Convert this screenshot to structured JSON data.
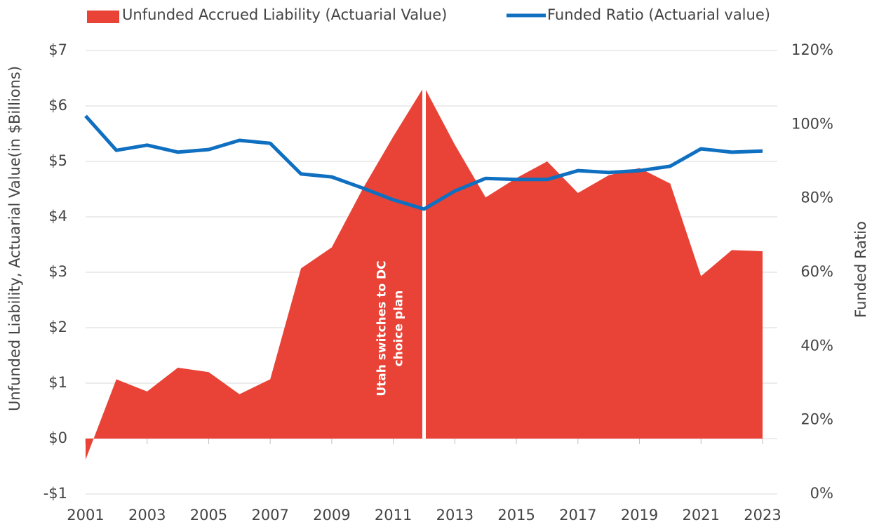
{
  "chart_data": {
    "type": "area",
    "ylabel": "Unfunded Liability, Actuarial Value(in $Billions)",
    "y2label": "Funded Ratio",
    "x": [
      2001,
      2002,
      2003,
      2004,
      2005,
      2006,
      2007,
      2008,
      2009,
      2010,
      2011,
      2012,
      2013,
      2014,
      2015,
      2016,
      2017,
      2018,
      2019,
      2020,
      2021,
      2022,
      2023
    ],
    "xlim": [
      2001,
      2023
    ],
    "xticks": [
      2001,
      2003,
      2005,
      2007,
      2009,
      2011,
      2013,
      2015,
      2017,
      2019,
      2021,
      2023
    ],
    "ylim": [
      -1,
      7
    ],
    "yticks": [
      {
        "value": -1,
        "label": "-$1"
      },
      {
        "value": 0,
        "label": "$0"
      },
      {
        "value": 1,
        "label": "$1"
      },
      {
        "value": 2,
        "label": "$2"
      },
      {
        "value": 3,
        "label": "$3"
      },
      {
        "value": 4,
        "label": "$4"
      },
      {
        "value": 5,
        "label": "$5"
      },
      {
        "value": 6,
        "label": "$6"
      },
      {
        "value": 7,
        "label": "$7"
      }
    ],
    "y2lim": [
      0,
      120
    ],
    "y2ticks": [
      {
        "value": 0,
        "label": "0%"
      },
      {
        "value": 20,
        "label": "20%"
      },
      {
        "value": 40,
        "label": "40%"
      },
      {
        "value": 60,
        "label": "60%"
      },
      {
        "value": 80,
        "label": "80%"
      },
      {
        "value": 100,
        "label": "100%"
      },
      {
        "value": 120,
        "label": "120%"
      }
    ],
    "grid": true,
    "legend": "top",
    "series": [
      {
        "name": "Unfunded Accrued Liability (Actuarial Value)",
        "type": "area",
        "color": "#e84336",
        "values": [
          -0.38,
          1.07,
          0.85,
          1.28,
          1.2,
          0.8,
          1.07,
          3.07,
          3.45,
          4.5,
          5.45,
          6.35,
          5.3,
          4.35,
          4.7,
          5.0,
          4.43,
          4.75,
          4.88,
          4.6,
          2.93,
          3.4,
          3.38
        ]
      },
      {
        "name": "Funded Ratio (Actuarial value)",
        "type": "line",
        "axis": "y2",
        "color": "#0f6fc0",
        "values": [
          102.3,
          93.0,
          94.4,
          92.5,
          93.2,
          95.7,
          94.9,
          86.6,
          85.8,
          82.8,
          79.6,
          77.1,
          82.0,
          85.4,
          85.1,
          85.1,
          87.5,
          87.0,
          87.5,
          88.7,
          93.4,
          92.5,
          92.8
        ]
      }
    ],
    "annotations": [
      {
        "x": 2012,
        "text": [
          "Utah switches to DC",
          "choice plan"
        ]
      }
    ]
  }
}
